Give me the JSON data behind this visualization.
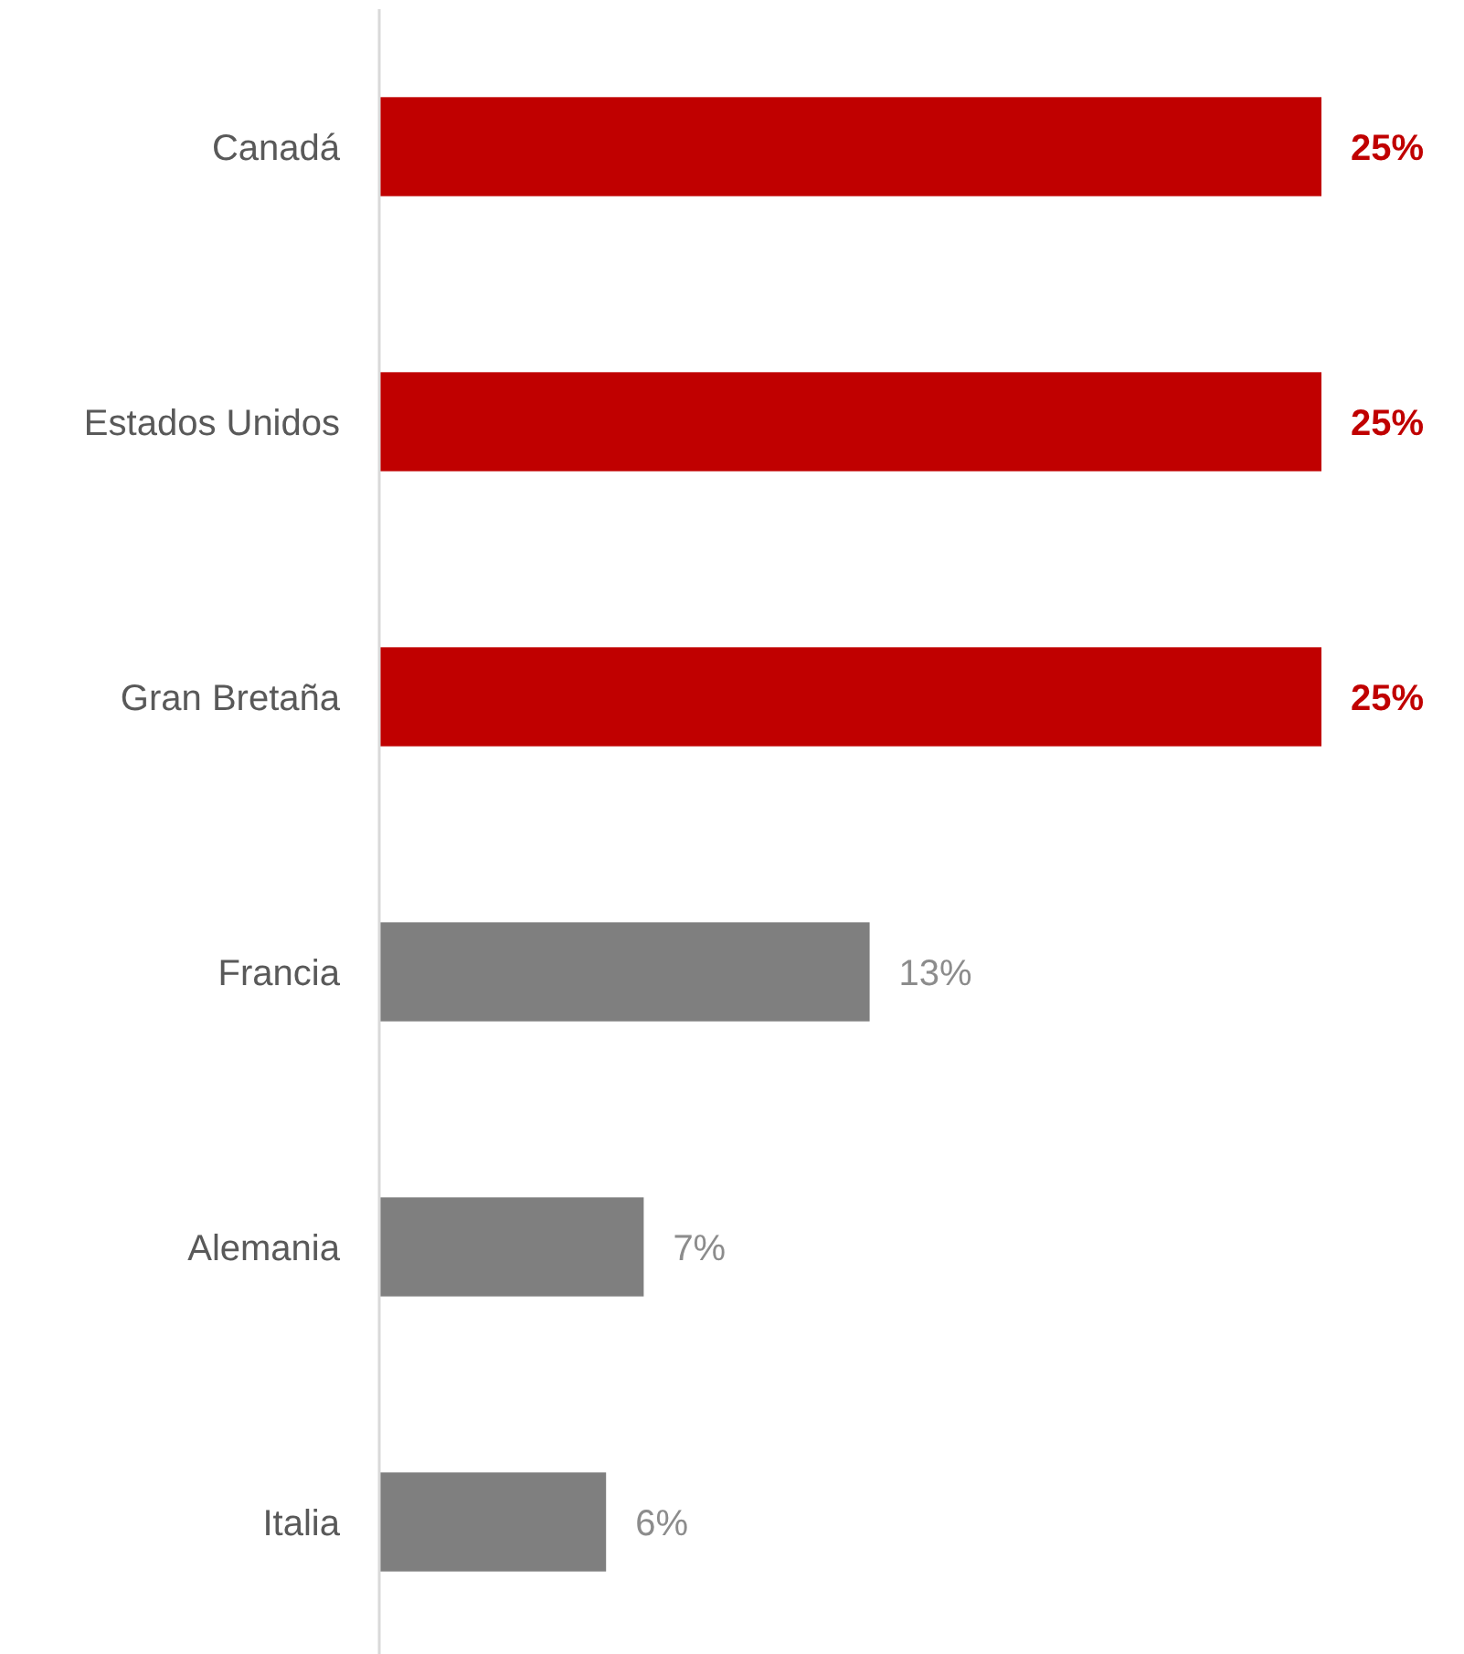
{
  "chart_data": {
    "type": "bar",
    "orientation": "horizontal",
    "categories": [
      "Canadá",
      "Estados Unidos",
      "Gran Bretaña",
      "Francia",
      "Alemania",
      "Italia"
    ],
    "values": [
      25,
      25,
      25,
      13,
      7,
      6
    ],
    "colors": [
      "#c00000",
      "#c00000",
      "#c00000",
      "#7f7f7f",
      "#7f7f7f",
      "#7f7f7f"
    ],
    "value_labels": [
      "25%",
      "25%",
      "25%",
      "13%",
      "7%",
      "6%"
    ]
  }
}
